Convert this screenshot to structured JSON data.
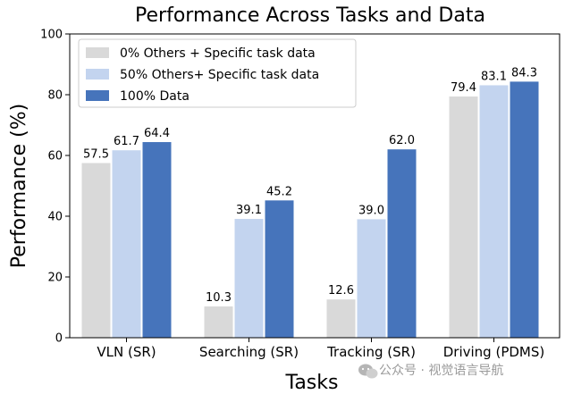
{
  "chart_data": {
    "type": "bar",
    "title": "Performance Across Tasks and Data",
    "xlabel": "Tasks",
    "ylabel": "Performance (%)",
    "ylim": [
      0,
      100
    ],
    "yticks": [
      0,
      20,
      40,
      60,
      80,
      100
    ],
    "categories": [
      "VLN (SR)",
      "Searching (SR)",
      "Tracking (SR)",
      "Driving (PDMS)"
    ],
    "series": [
      {
        "name": "0% Others + Specific task data",
        "color": "#d9d9d9",
        "values": [
          57.5,
          10.3,
          12.6,
          79.4
        ]
      },
      {
        "name": "50% Others+ Specific task data",
        "color": "#c3d4ef",
        "values": [
          61.7,
          39.1,
          39.0,
          83.1
        ]
      },
      {
        "name": "100% Data",
        "color": "#4674bb",
        "values": [
          64.4,
          45.2,
          62.0,
          84.3
        ]
      }
    ],
    "legend_position": "top-left",
    "grid": false
  },
  "watermark": {
    "text": "公众号 · 视觉语言导航",
    "icon": "wechat-icon"
  }
}
